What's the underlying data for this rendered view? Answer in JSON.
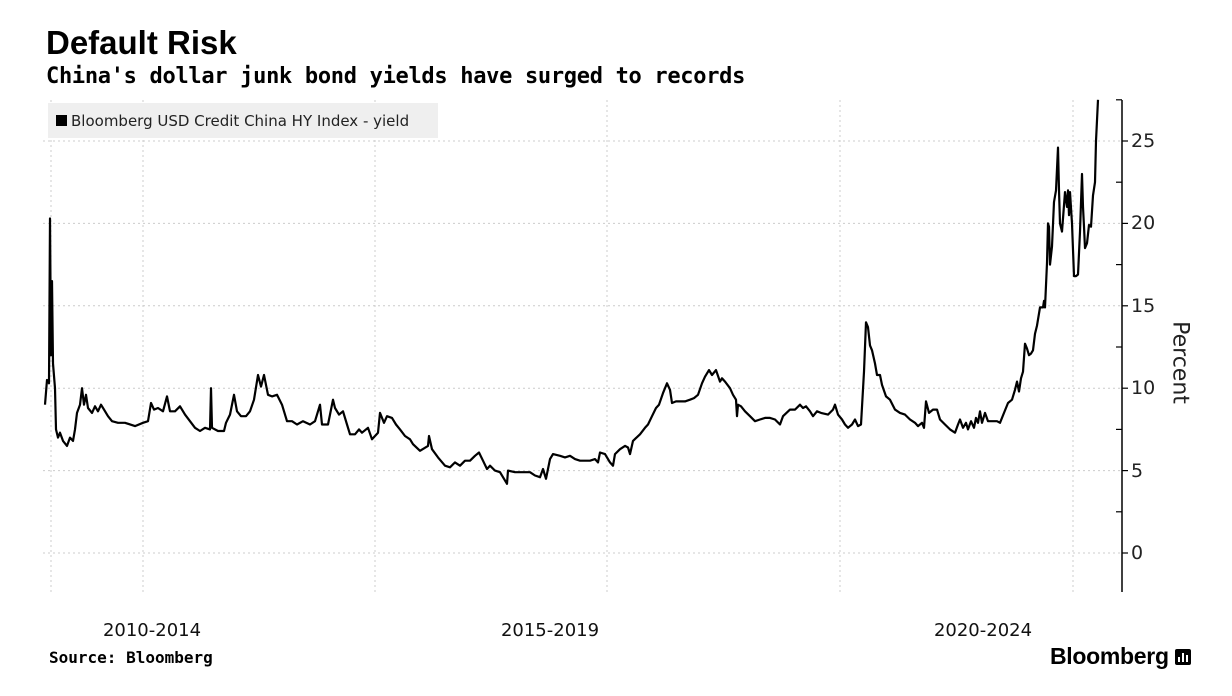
{
  "header": {
    "title": "Default Risk",
    "subtitle": "China's dollar junk bond yields have surged to records"
  },
  "footer": {
    "source": "Source: Bloomberg",
    "brand": "Bloomberg"
  },
  "colors": {
    "line": "#000000",
    "grid": "#cccccc",
    "legend_bg": "#efefef"
  },
  "chart_data": {
    "type": "line",
    "title": "Default Risk",
    "subtitle": "China's dollar junk bond yields have surged to records",
    "legend": [
      "Bloomberg USD Credit China HY Index - yield"
    ],
    "legend_position": "top-left",
    "ylabel": "Percent",
    "xlabel": "",
    "y_ticks": [
      0,
      5,
      10,
      15,
      20,
      25
    ],
    "ylim": [
      -2.3,
      27.5
    ],
    "xlim": [
      2009.0,
      2019.79
    ],
    "x_period_labels": [
      "2010-2014",
      "2015-2019",
      "2020-2024"
    ],
    "x_gridlines": [
      2009.08,
      2010.0,
      2012.32,
      2014.64,
      2016.97,
      2019.3
    ],
    "grid": true,
    "series": [
      {
        "name": "Bloomberg USD Credit China HY Index - yield",
        "points": [
          [
            2009.02,
            9.0
          ],
          [
            2009.04,
            10.5
          ],
          [
            2009.06,
            10.3
          ],
          [
            2009.07,
            20.3
          ],
          [
            2009.08,
            12
          ],
          [
            2009.09,
            16.5
          ],
          [
            2009.1,
            11.5
          ],
          [
            2009.12,
            10
          ],
          [
            2009.13,
            7.5
          ],
          [
            2009.15,
            7.0
          ],
          [
            2009.17,
            7.3
          ],
          [
            2009.2,
            6.8
          ],
          [
            2009.24,
            6.5
          ],
          [
            2009.27,
            7.0
          ],
          [
            2009.3,
            6.8
          ],
          [
            2009.32,
            7.5
          ],
          [
            2009.34,
            8.5
          ],
          [
            2009.37,
            9.0
          ],
          [
            2009.39,
            10.0
          ],
          [
            2009.41,
            9.0
          ],
          [
            2009.43,
            9.6
          ],
          [
            2009.45,
            8.8
          ],
          [
            2009.49,
            8.5
          ],
          [
            2009.52,
            8.9
          ],
          [
            2009.55,
            8.6
          ],
          [
            2009.58,
            9.0
          ],
          [
            2009.61,
            8.7
          ],
          [
            2009.65,
            8.3
          ],
          [
            2009.69,
            8.0
          ],
          [
            2009.75,
            7.9
          ],
          [
            2009.82,
            7.9
          ],
          [
            2009.92,
            7.7
          ],
          [
            2010.0,
            7.9
          ],
          [
            2010.05,
            8.0
          ],
          [
            2010.08,
            9.1
          ],
          [
            2010.11,
            8.7
          ],
          [
            2010.15,
            8.8
          ],
          [
            2010.2,
            8.6
          ],
          [
            2010.24,
            9.5
          ],
          [
            2010.27,
            8.6
          ],
          [
            2010.32,
            8.6
          ],
          [
            2010.37,
            8.9
          ],
          [
            2010.42,
            8.4
          ],
          [
            2010.47,
            8.0
          ],
          [
            2010.52,
            7.6
          ],
          [
            2010.57,
            7.4
          ],
          [
            2010.62,
            7.6
          ],
          [
            2010.67,
            7.5
          ],
          [
            2010.68,
            10.0
          ],
          [
            2010.69,
            7.6
          ],
          [
            2010.75,
            7.4
          ],
          [
            2010.81,
            7.4
          ],
          [
            2010.83,
            7.9
          ],
          [
            2010.87,
            8.4
          ],
          [
            2010.91,
            9.6
          ],
          [
            2010.94,
            8.6
          ],
          [
            2010.98,
            8.3
          ],
          [
            2011.03,
            8.3
          ],
          [
            2011.07,
            8.6
          ],
          [
            2011.11,
            9.3
          ],
          [
            2011.15,
            10.8
          ],
          [
            2011.18,
            10.1
          ],
          [
            2011.21,
            10.8
          ],
          [
            2011.25,
            9.6
          ],
          [
            2011.29,
            9.5
          ],
          [
            2011.34,
            9.6
          ],
          [
            2011.39,
            9.0
          ],
          [
            2011.44,
            8.0
          ],
          [
            2011.49,
            8.0
          ],
          [
            2011.54,
            7.8
          ],
          [
            2011.6,
            8.0
          ],
          [
            2011.67,
            7.8
          ],
          [
            2011.72,
            8.0
          ],
          [
            2011.77,
            9.0
          ],
          [
            2011.79,
            7.8
          ],
          [
            2011.85,
            7.8
          ],
          [
            2011.9,
            9.3
          ],
          [
            2011.92,
            8.8
          ],
          [
            2011.96,
            8.4
          ],
          [
            2012.0,
            8.6
          ],
          [
            2012.04,
            7.8
          ],
          [
            2012.07,
            7.2
          ],
          [
            2012.12,
            7.2
          ],
          [
            2012.16,
            7.5
          ],
          [
            2012.19,
            7.3
          ],
          [
            2012.25,
            7.6
          ],
          [
            2012.29,
            6.9
          ],
          [
            2012.35,
            7.3
          ],
          [
            2012.37,
            8.5
          ],
          [
            2012.41,
            7.9
          ],
          [
            2012.44,
            8.3
          ],
          [
            2012.49,
            8.2
          ],
          [
            2012.53,
            7.8
          ],
          [
            2012.57,
            7.5
          ],
          [
            2012.62,
            7.1
          ],
          [
            2012.67,
            6.9
          ],
          [
            2012.7,
            6.6
          ],
          [
            2012.77,
            6.2
          ],
          [
            2012.85,
            6.5
          ],
          [
            2012.86,
            7.1
          ],
          [
            2012.89,
            6.3
          ],
          [
            2012.95,
            5.8
          ],
          [
            2013.02,
            5.3
          ],
          [
            2013.07,
            5.2
          ],
          [
            2013.12,
            5.5
          ],
          [
            2013.17,
            5.3
          ],
          [
            2013.22,
            5.6
          ],
          [
            2013.27,
            5.6
          ],
          [
            2013.32,
            5.9
          ],
          [
            2013.36,
            6.1
          ],
          [
            2013.4,
            5.6
          ],
          [
            2013.44,
            5.1
          ],
          [
            2013.47,
            5.3
          ],
          [
            2013.52,
            5.0
          ],
          [
            2013.57,
            4.9
          ],
          [
            2013.64,
            4.2
          ],
          [
            2013.65,
            5.0
          ],
          [
            2013.72,
            4.9
          ],
          [
            2013.77,
            4.9
          ],
          [
            2013.82,
            4.9
          ],
          [
            2013.87,
            4.9
          ],
          [
            2013.92,
            4.7
          ],
          [
            2013.97,
            4.6
          ],
          [
            2014.0,
            5.1
          ],
          [
            2014.03,
            4.5
          ],
          [
            2014.07,
            5.7
          ],
          [
            2014.1,
            6.0
          ],
          [
            2014.17,
            5.9
          ],
          [
            2014.22,
            5.8
          ],
          [
            2014.27,
            5.9
          ],
          [
            2014.32,
            5.7
          ],
          [
            2014.37,
            5.6
          ],
          [
            2014.42,
            5.6
          ],
          [
            2014.47,
            5.6
          ],
          [
            2014.52,
            5.7
          ],
          [
            2014.55,
            5.5
          ],
          [
            2014.57,
            6.1
          ],
          [
            2014.62,
            6.0
          ],
          [
            2014.67,
            5.5
          ],
          [
            2014.7,
            5.3
          ],
          [
            2014.72,
            6.0
          ],
          [
            2014.77,
            6.3
          ],
          [
            2014.82,
            6.5
          ],
          [
            2014.85,
            6.4
          ],
          [
            2014.87,
            6.0
          ],
          [
            2014.9,
            6.8
          ],
          [
            2014.97,
            7.2
          ],
          [
            2015.02,
            7.6
          ],
          [
            2015.05,
            7.8
          ],
          [
            2015.09,
            8.3
          ],
          [
            2015.13,
            8.8
          ],
          [
            2015.16,
            9.0
          ],
          [
            2015.2,
            9.7
          ],
          [
            2015.24,
            10.3
          ],
          [
            2015.27,
            9.9
          ],
          [
            2015.29,
            9.1
          ],
          [
            2015.33,
            9.2
          ],
          [
            2015.37,
            9.2
          ],
          [
            2015.42,
            9.2
          ],
          [
            2015.47,
            9.3
          ],
          [
            2015.51,
            9.4
          ],
          [
            2015.55,
            9.6
          ],
          [
            2015.59,
            10.3
          ],
          [
            2015.62,
            10.7
          ],
          [
            2015.66,
            11.1
          ],
          [
            2015.69,
            10.8
          ],
          [
            2015.73,
            11.1
          ],
          [
            2015.77,
            10.4
          ],
          [
            2015.79,
            10.6
          ],
          [
            2015.82,
            10.4
          ],
          [
            2015.87,
            10.0
          ],
          [
            2015.9,
            9.6
          ],
          [
            2015.93,
            9.3
          ],
          [
            2015.94,
            8.3
          ],
          [
            2015.95,
            9.0
          ],
          [
            2015.98,
            8.9
          ],
          [
            2016.02,
            8.6
          ],
          [
            2016.07,
            8.3
          ],
          [
            2016.12,
            8.0
          ],
          [
            2016.17,
            8.1
          ],
          [
            2016.22,
            8.2
          ],
          [
            2016.27,
            8.2
          ],
          [
            2016.32,
            8.1
          ],
          [
            2016.37,
            7.8
          ],
          [
            2016.4,
            8.3
          ],
          [
            2016.47,
            8.7
          ],
          [
            2016.52,
            8.7
          ],
          [
            2016.57,
            9.0
          ],
          [
            2016.6,
            8.8
          ],
          [
            2016.63,
            8.9
          ],
          [
            2016.67,
            8.6
          ],
          [
            2016.7,
            8.3
          ],
          [
            2016.74,
            8.6
          ],
          [
            2016.78,
            8.5
          ],
          [
            2016.85,
            8.4
          ],
          [
            2016.9,
            8.7
          ],
          [
            2016.92,
            9.0
          ],
          [
            2016.95,
            8.4
          ],
          [
            2016.99,
            8.1
          ],
          [
            2017.02,
            7.8
          ],
          [
            2017.05,
            7.6
          ],
          [
            2017.09,
            7.8
          ],
          [
            2017.12,
            8.1
          ],
          [
            2017.15,
            7.7
          ],
          [
            2017.18,
            7.8
          ],
          [
            2017.21,
            11.0
          ],
          [
            2017.23,
            14.0
          ],
          [
            2017.25,
            13.7
          ],
          [
            2017.27,
            12.6
          ],
          [
            2017.29,
            12.3
          ],
          [
            2017.32,
            11.5
          ],
          [
            2017.34,
            10.8
          ],
          [
            2017.37,
            10.8
          ],
          [
            2017.39,
            10.2
          ],
          [
            2017.43,
            9.5
          ],
          [
            2017.47,
            9.3
          ],
          [
            2017.52,
            8.7
          ],
          [
            2017.57,
            8.5
          ],
          [
            2017.62,
            8.4
          ],
          [
            2017.67,
            8.1
          ],
          [
            2017.72,
            7.9
          ],
          [
            2017.75,
            7.7
          ],
          [
            2017.79,
            7.9
          ],
          [
            2017.81,
            7.6
          ],
          [
            2017.83,
            9.2
          ],
          [
            2017.86,
            8.5
          ],
          [
            2017.9,
            8.7
          ],
          [
            2017.94,
            8.7
          ],
          [
            2017.97,
            8.1
          ],
          [
            2018.02,
            7.8
          ],
          [
            2018.07,
            7.5
          ],
          [
            2018.12,
            7.3
          ],
          [
            2018.15,
            7.8
          ],
          [
            2018.17,
            8.1
          ],
          [
            2018.2,
            7.6
          ],
          [
            2018.23,
            7.9
          ],
          [
            2018.25,
            7.5
          ],
          [
            2018.28,
            8.0
          ],
          [
            2018.31,
            7.6
          ],
          [
            2018.33,
            8.2
          ],
          [
            2018.35,
            7.9
          ],
          [
            2018.37,
            8.6
          ],
          [
            2018.39,
            7.9
          ],
          [
            2018.42,
            8.5
          ],
          [
            2018.45,
            8.0
          ],
          [
            2018.49,
            8.0
          ],
          [
            2018.54,
            8.0
          ],
          [
            2018.57,
            7.9
          ],
          [
            2018.61,
            8.5
          ],
          [
            2018.65,
            9.1
          ],
          [
            2018.69,
            9.3
          ],
          [
            2018.72,
            9.9
          ],
          [
            2018.74,
            10.4
          ],
          [
            2018.76,
            9.8
          ],
          [
            2018.78,
            10.6
          ],
          [
            2018.8,
            11.0
          ],
          [
            2018.82,
            12.7
          ],
          [
            2018.84,
            12.4
          ],
          [
            2018.86,
            12.0
          ],
          [
            2018.88,
            12.1
          ],
          [
            2018.9,
            12.3
          ],
          [
            2018.92,
            13.3
          ],
          [
            2018.94,
            13.8
          ],
          [
            2018.97,
            14.9
          ],
          [
            2019.0,
            14.9
          ],
          [
            2019.01,
            15.3
          ],
          [
            2019.02,
            14.9
          ],
          [
            2019.04,
            17.6
          ],
          [
            2019.05,
            20.0
          ],
          [
            2019.06,
            19.8
          ],
          [
            2019.07,
            17.5
          ],
          [
            2019.09,
            18.6
          ],
          [
            2019.11,
            21.3
          ],
          [
            2019.13,
            22.0
          ],
          [
            2019.15,
            24.6
          ],
          [
            2019.16,
            22.0
          ],
          [
            2019.17,
            20.0
          ],
          [
            2019.19,
            19.5
          ],
          [
            2019.2,
            20.3
          ],
          [
            2019.22,
            21.9
          ],
          [
            2019.24,
            21.0
          ],
          [
            2019.25,
            22.0
          ],
          [
            2019.26,
            20.5
          ],
          [
            2019.27,
            21.9
          ],
          [
            2019.29,
            20.0
          ],
          [
            2019.31,
            16.8
          ],
          [
            2019.33,
            16.8
          ],
          [
            2019.35,
            16.9
          ],
          [
            2019.37,
            19.5
          ],
          [
            2019.39,
            23.0
          ],
          [
            2019.4,
            21.0
          ],
          [
            2019.41,
            19.8
          ],
          [
            2019.42,
            18.5
          ],
          [
            2019.44,
            18.8
          ],
          [
            2019.46,
            19.9
          ],
          [
            2019.48,
            19.8
          ],
          [
            2019.5,
            21.7
          ],
          [
            2019.52,
            22.5
          ],
          [
            2019.53,
            25.0
          ],
          [
            2019.55,
            27.5
          ]
        ]
      }
    ]
  }
}
